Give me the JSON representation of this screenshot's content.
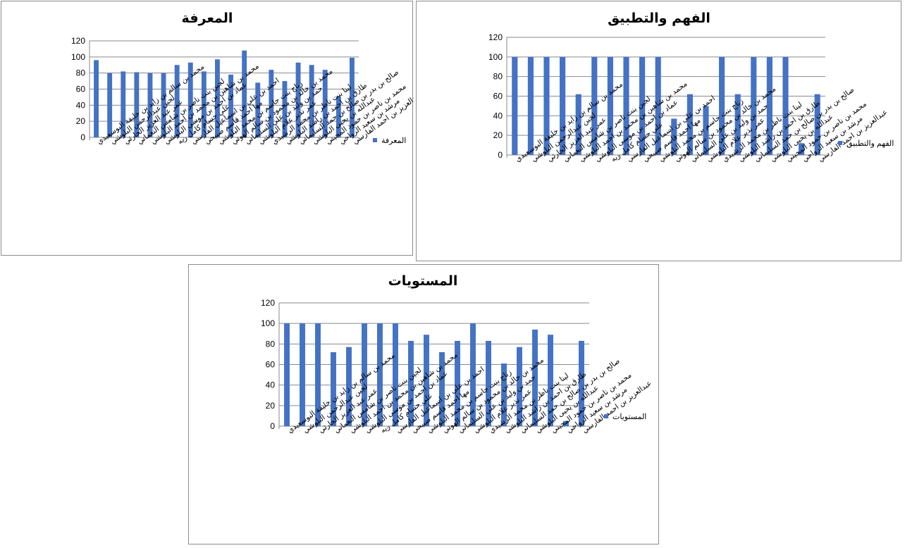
{
  "chart_data": [
    {
      "type": "bar",
      "title": "المعرفة",
      "ylim": [
        0,
        120
      ],
      "yticks": [
        0,
        20,
        40,
        60,
        80,
        100,
        120
      ],
      "grid": true,
      "legend": "right",
      "color": "#4472c4",
      "categories": [
        "محمد بن سالم بن زايد بن خليفة البوسعيدي",
        "لجين عبدالرحمن البلوشي",
        "عمر عبد العزيز الحارثي",
        "لجين بنت ناصر بن شامس النعماني",
        "محمد بن شاهين بن محمد بن احمد البلوشي",
        "عماد بن احمد بن موسى البلوشي",
        "علي حسام كامل ريه",
        "احمد بن علي بن اسماعيل الفارسي",
        "مها احمد قاسم صبيحي",
        "زناج بنت جاسم بن محمد البلوشي",
        "محمد بن خالد بن محمود بن سالم الهوتي",
        "حمد بن وليد بن علي السليماني",
        "عمر نذير علام البلوشي",
        "لينا بنت ناظر بن محمد الرشيدي",
        "طارق بن احمد بن راشد البلوشي",
        "صالح بن بدر بن صالح بن حمد السليماني",
        "عبدالله بن يحيى البلوشي",
        "محمد بن ناصر بن حمود المجيني",
        "مرشد بن سعيد الرواحي",
        "عبدالعزيز بن احمد الفارسي"
      ],
      "series": [
        {
          "name": "المعرفة",
          "values": [
            96,
            80,
            82,
            81,
            80,
            80,
            90,
            93,
            82,
            97,
            78,
            108,
            68,
            84,
            70,
            93,
            90,
            84,
            51,
            99
          ]
        }
      ]
    },
    {
      "type": "bar",
      "title": "الفهم والتطبيق",
      "ylim": [
        0,
        120
      ],
      "yticks": [
        0,
        20,
        40,
        60,
        80,
        100,
        120
      ],
      "grid": true,
      "legend": "right",
      "color": "#4472c4",
      "categories": [
        "محمد بن سالم بن زايد بن خليفة البوسعيدي",
        "لجين عبدالرحمن البلوشي",
        "عمر عبد العزيز الحارثي",
        "لجين بنت ناصر بن شامس النعماني",
        "محمد بن شاهين بن محمد بن احمد البلوشي",
        "عماد بن احمد بن موسى البلوشي",
        "علي حسام كامل ريه",
        "احمد بن علي بن اسماعيل الفارسي",
        "مها احمد قاسم صبيحي",
        "زناج بنت جاسم بن محمد البلوشي",
        "محمد بن خالد بن محمود بن سالم الهوتي",
        "حمد بن وليد بن علي السليماني",
        "عمر نذير علام البلوشي",
        "لينا بنت ناظر بن محمد الرشيدي",
        "طارق بن احمد بن راشد البلوشي",
        "صالح بن بدر بن صالح بن حمد السليماني",
        "عبدالله بن يحيى البلوشي",
        "محمد بن ناصر بن حمود المجيني",
        "مرشد بن سعيد الرواحي",
        "عبدالعزيز بن احمد الفارسي"
      ],
      "series": [
        {
          "name": "الفهم والتطبيق",
          "values": [
            100,
            100,
            100,
            100,
            62,
            100,
            100,
            100,
            100,
            100,
            37,
            62,
            50,
            100,
            62,
            100,
            100,
            100,
            12,
            62
          ]
        }
      ]
    },
    {
      "type": "bar",
      "title": "المستويات",
      "ylim": [
        0,
        120
      ],
      "yticks": [
        0,
        20,
        40,
        60,
        80,
        100,
        120
      ],
      "grid": true,
      "legend": "right",
      "color": "#4472c4",
      "categories": [
        "محمد بن سالم بن زايد بن خليفة البوسعيدي",
        "لجين عبدالرحمن البلوشي",
        "عمر عبد العزيز الحارثي",
        "لجين بنت ناصر بن شامس النعماني",
        "محمد بن شاهين بن محمد بن احمد البلوشي",
        "عماد بن احمد بن موسى البلوشي",
        "علي حسام كامل ريه",
        "احمد بن علي بن اسماعيل الفارسي",
        "مها احمد قاسم صبيحي",
        "زناج بنت جاسم بن محمد البلوشي",
        "محمد بن خالد بن محمود بن سالم الهوتي",
        "حمد بن وليد بن علي السليماني",
        "عمر نذير علام البلوشي",
        "لينا بنت ناظر بن محمد الرشيدي",
        "طارق بن احمد بن راشد البلوشي",
        "صالح بن بدر بن صالح بن حمد السليماني",
        "عبدالله بن يحيى البلوشي",
        "محمد بن ناصر بن حمود المجيني",
        "مرشد بن سعيد الرواحي",
        "عبدالعزيز بن احمد الفارسي"
      ],
      "series": [
        {
          "name": "المستويات",
          "values": [
            100,
            100,
            100,
            72,
            77,
            100,
            100,
            100,
            83,
            89,
            72,
            83,
            100,
            83,
            61,
            77,
            94,
            89,
            5,
            83
          ]
        }
      ]
    }
  ]
}
